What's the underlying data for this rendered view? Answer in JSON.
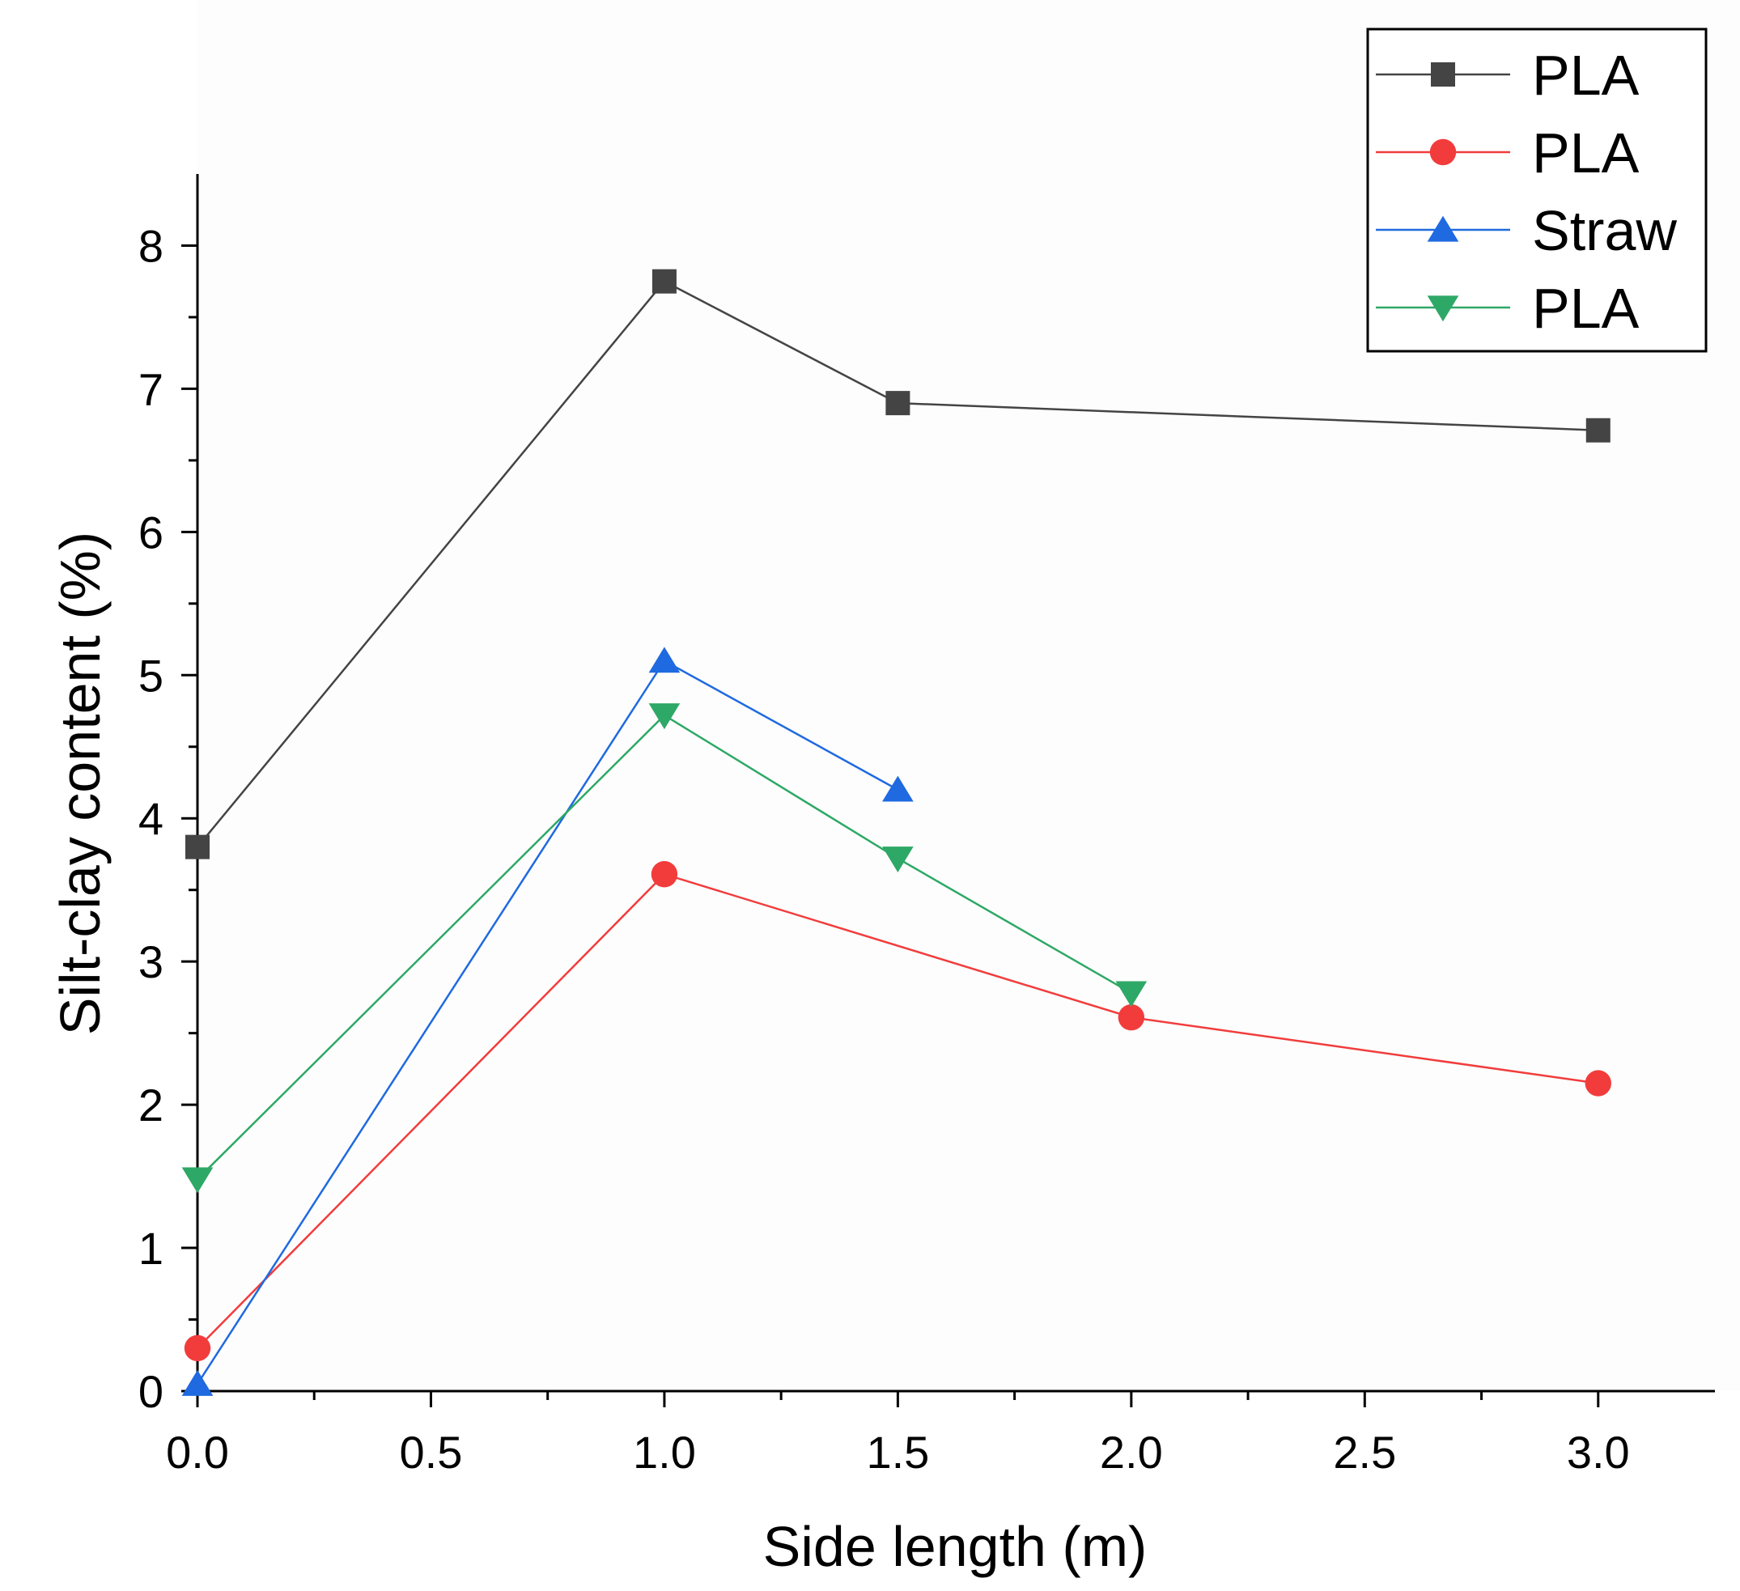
{
  "chart_data": {
    "type": "line",
    "title": "",
    "xlabel": "Side length (m)",
    "ylabel": "Silt-clay content (%)",
    "xlim": [
      0,
      3.25
    ],
    "ylim": [
      0,
      8.5
    ],
    "x_ticks": [
      "0.0",
      "0.5",
      "1.0",
      "1.5",
      "2.0",
      "2.5",
      "3.0"
    ],
    "y_ticks": [
      "0",
      "1",
      "2",
      "3",
      "4",
      "5",
      "6",
      "7",
      "8"
    ],
    "grid": false,
    "legend_position": "top-right",
    "series": [
      {
        "name": "PLA",
        "marker": "square",
        "color": "#444444",
        "x": [
          0,
          1.0,
          1.5,
          3.0
        ],
        "y": [
          3.8,
          7.75,
          6.9,
          6.71
        ]
      },
      {
        "name": "PLA",
        "marker": "circle",
        "color": "#f23c3c",
        "x": [
          0,
          1.0,
          2.0,
          3.0
        ],
        "y": [
          0.3,
          3.61,
          2.61,
          2.15
        ]
      },
      {
        "name": "Straw",
        "marker": "triangle-up",
        "color": "#1f6ae0",
        "x": [
          0,
          1.0,
          1.5
        ],
        "y": [
          0.05,
          5.1,
          4.2
        ]
      },
      {
        "name": "PLA",
        "marker": "triangle-down",
        "color": "#2ea866",
        "x": [
          0,
          1.0,
          1.5,
          2.0
        ],
        "y": [
          1.48,
          4.72,
          3.72,
          2.78
        ]
      }
    ]
  }
}
